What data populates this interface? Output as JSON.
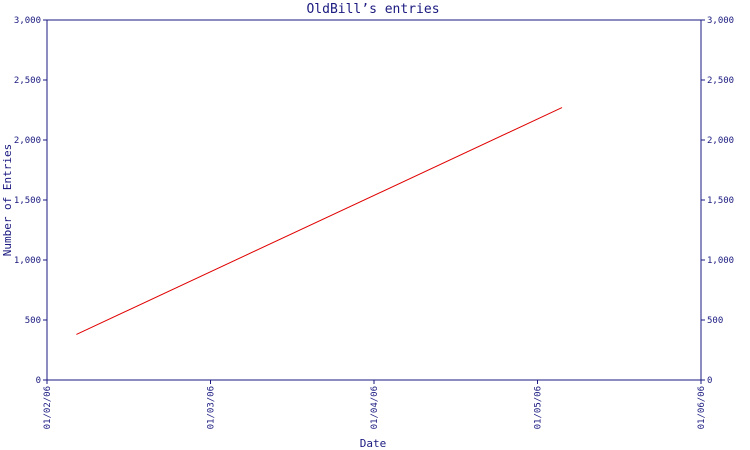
{
  "chart_data": {
    "type": "line",
    "title": "OldBill’s entries",
    "xlabel": "Date",
    "ylabel": "Number of Entries",
    "x_ticks": [
      "01/02/06",
      "01/03/06",
      "01/04/06",
      "01/05/06",
      "01/06/06"
    ],
    "y_ticks": [
      "0",
      "500",
      "1,000",
      "1,500",
      "2,000",
      "2,500",
      "3,000"
    ],
    "ylim": [
      0,
      3000
    ],
    "grid": false,
    "series": [
      {
        "color": "#e00000",
        "points": [
          {
            "x": 0.18,
            "y": 380
          },
          {
            "x": 3.15,
            "y": 2270
          }
        ]
      }
    ]
  },
  "colors": {
    "axis": "#1a1a80",
    "line": "#e00000",
    "background": "#ffffff"
  }
}
